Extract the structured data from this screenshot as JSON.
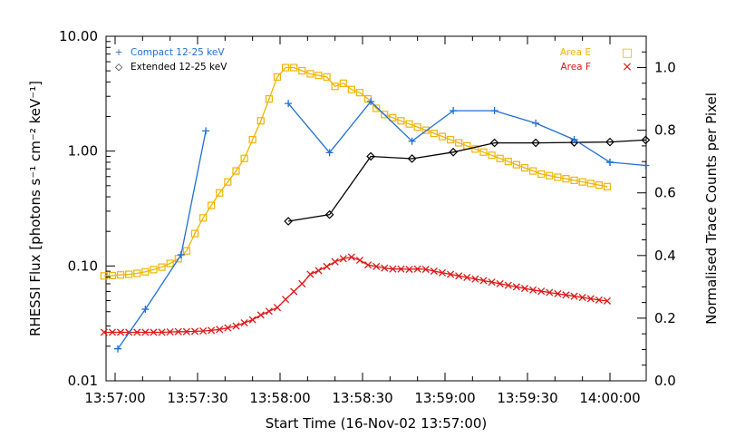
{
  "chart_data": {
    "type": "line",
    "x_axis": {
      "label": "Start Time (16-Nov-02 13:57:00)",
      "range_seconds": [
        0,
        175
      ],
      "ticks": [
        {
          "t": 0,
          "label": "13:57:00"
        },
        {
          "t": 30,
          "label": "13:57:30"
        },
        {
          "t": 60,
          "label": "13:58:00"
        },
        {
          "t": 90,
          "label": "13:58:30"
        },
        {
          "t": 120,
          "label": "13:59:00"
        },
        {
          "t": 150,
          "label": "13:59:30"
        },
        {
          "t": 180,
          "label": "14:00:00"
        }
      ]
    },
    "y_left": {
      "label": "RHESSI Flux [photons s⁻¹ cm⁻² keV⁻¹]",
      "scale": "log",
      "range": [
        0.01,
        10
      ],
      "ticks": [
        {
          "v": 0.01,
          "label": "0.01"
        },
        {
          "v": 0.1,
          "label": "0.10"
        },
        {
          "v": 1,
          "label": "1.00"
        },
        {
          "v": 10,
          "label": "10.00"
        }
      ]
    },
    "y_right": {
      "label": "Normalised Trace Counts per Pixel",
      "scale": "linear",
      "range": [
        0,
        1.1
      ],
      "ticks": [
        {
          "v": 0.0,
          "label": "0.0"
        },
        {
          "v": 0.2,
          "label": "0.2"
        },
        {
          "v": 0.4,
          "label": "0.4"
        },
        {
          "v": 0.6,
          "label": "0.6"
        },
        {
          "v": 0.8,
          "label": "0.8"
        },
        {
          "v": 1.0,
          "label": "1.0"
        }
      ]
    },
    "series": [
      {
        "name": "Compact 12-25 keV",
        "axis": "left",
        "color": "#1f6fd6",
        "marker": "plus",
        "segments": [
          {
            "t": [
              1,
              11,
              24,
              33
            ],
            "y": [
              0.019,
              0.042,
              0.125,
              1.5
            ]
          },
          {
            "t": [
              63,
              78,
              93,
              108,
              123,
              138,
              153,
              167,
              180
            ],
            "y": [
              2.6,
              0.97,
              2.7,
              1.22,
              2.25,
              2.25,
              1.75,
              1.26,
              0.8
            ]
          },
          {
            "t": [
              180,
              193
            ],
            "y": [
              0.8,
              0.75
            ]
          }
        ]
      },
      {
        "name": "Extended 12-25 keV",
        "axis": "left",
        "color": "#000000",
        "marker": "diamond",
        "segments": [
          {
            "t": [
              63,
              78,
              93,
              108,
              123,
              138,
              153,
              167,
              180,
              193
            ],
            "y": [
              0.245,
              0.28,
              0.9,
              0.86,
              0.98,
              1.18,
              1.18,
              1.19,
              1.2,
              1.25
            ]
          }
        ]
      },
      {
        "name": "Area E",
        "axis": "right",
        "color": "#f0b400",
        "marker": "square",
        "segments": [
          {
            "t": [
              -4,
              -1,
              2,
              5,
              8,
              11,
              14,
              17,
              20,
              23,
              26,
              29,
              32,
              35,
              38,
              41,
              44,
              47,
              50,
              53,
              56,
              59,
              62,
              65,
              68,
              71,
              74,
              77,
              80,
              83,
              86,
              89,
              92,
              95,
              98,
              101,
              104,
              107,
              110,
              113,
              116,
              119,
              122,
              125,
              128,
              131,
              134,
              137,
              140,
              143,
              146,
              149,
              152,
              155,
              158,
              161,
              164,
              167,
              170,
              173,
              176,
              179
            ],
            "y": [
              0.335,
              0.336,
              0.338,
              0.34,
              0.343,
              0.348,
              0.355,
              0.363,
              0.375,
              0.39,
              0.415,
              0.47,
              0.52,
              0.56,
              0.6,
              0.635,
              0.67,
              0.71,
              0.77,
              0.83,
              0.9,
              0.97,
              1.0,
              1.0,
              0.99,
              0.98,
              0.975,
              0.97,
              0.94,
              0.95,
              0.93,
              0.92,
              0.9,
              0.87,
              0.85,
              0.84,
              0.83,
              0.82,
              0.81,
              0.8,
              0.79,
              0.78,
              0.77,
              0.76,
              0.75,
              0.74,
              0.73,
              0.72,
              0.71,
              0.7,
              0.69,
              0.68,
              0.67,
              0.66,
              0.655,
              0.65,
              0.645,
              0.64,
              0.635,
              0.63,
              0.625,
              0.62
            ]
          }
        ]
      },
      {
        "name": "Area F",
        "axis": "right",
        "color": "#e01818",
        "marker": "x",
        "segments": [
          {
            "t": [
              -4,
              -1,
              2,
              5,
              8,
              11,
              14,
              17,
              20,
              23,
              26,
              29,
              32,
              35,
              38,
              41,
              44,
              47,
              50,
              53,
              56,
              59,
              62,
              65,
              68,
              71,
              74,
              77,
              80,
              83,
              86,
              89,
              92,
              95,
              98,
              101,
              104,
              107,
              110,
              113,
              116,
              119,
              122,
              125,
              128,
              131,
              134,
              137,
              140,
              143,
              146,
              149,
              152,
              155,
              158,
              161,
              164,
              167,
              170,
              173,
              176,
              179
            ],
            "y": [
              0.155,
              0.155,
              0.155,
              0.155,
              0.155,
              0.155,
              0.155,
              0.155,
              0.156,
              0.157,
              0.157,
              0.158,
              0.159,
              0.161,
              0.164,
              0.169,
              0.175,
              0.185,
              0.195,
              0.21,
              0.222,
              0.234,
              0.26,
              0.285,
              0.31,
              0.34,
              0.352,
              0.365,
              0.38,
              0.39,
              0.395,
              0.385,
              0.37,
              0.365,
              0.36,
              0.357,
              0.357,
              0.356,
              0.357,
              0.356,
              0.35,
              0.345,
              0.34,
              0.335,
              0.33,
              0.325,
              0.32,
              0.315,
              0.31,
              0.305,
              0.3,
              0.295,
              0.29,
              0.286,
              0.282,
              0.278,
              0.274,
              0.27,
              0.266,
              0.262,
              0.258,
              0.255
            ]
          }
        ]
      }
    ],
    "legend": {
      "left_placement": "top-left",
      "right_placement": "top-right",
      "left": [
        {
          "symbol": "+",
          "text": "Compact 12-25 keV",
          "color": "#1f6fd6"
        },
        {
          "symbol": "◇",
          "text": "Extended 12-25 keV",
          "color": "#000000"
        }
      ],
      "right": [
        {
          "text": "Area E",
          "symbol": "□",
          "color": "#f0b400"
        },
        {
          "text": "Area F",
          "symbol": "×",
          "color": "#e01818"
        }
      ]
    },
    "grid": false
  }
}
